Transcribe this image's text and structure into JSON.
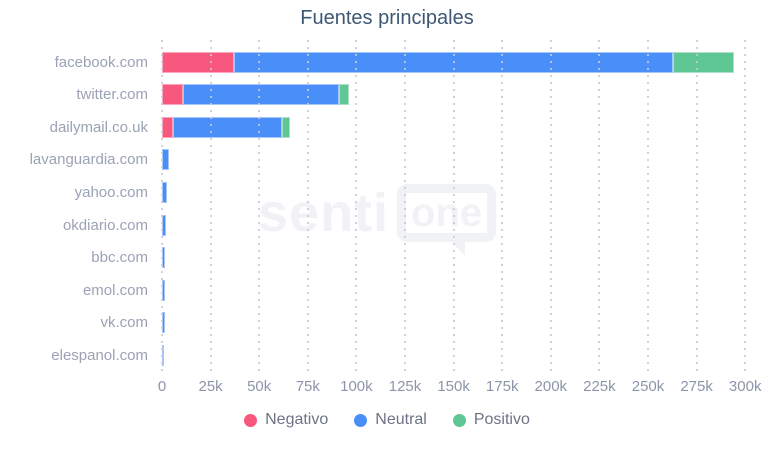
{
  "chart_data": {
    "type": "bar",
    "orientation": "horizontal",
    "stacked": true,
    "title": "Fuentes principales",
    "categories": [
      "facebook.com",
      "twitter.com",
      "dailymail.co.uk",
      "lavanguardia.com",
      "yahoo.com",
      "okdiario.com",
      "bbc.com",
      "emol.com",
      "vk.com",
      "elespanol.com"
    ],
    "series": [
      {
        "name": "Negativo",
        "color": "#f8577e",
        "border_color": "#fba4ba",
        "values": [
          37000,
          11000,
          5500,
          0,
          0,
          0,
          0,
          0,
          0,
          0
        ]
      },
      {
        "name": "Neutral",
        "color": "#4a8ff8",
        "border_color": "#a6c6fb",
        "values": [
          226000,
          80000,
          56000,
          3500,
          2500,
          2000,
          1800,
          1600,
          1400,
          400
        ]
      },
      {
        "name": "Positivo",
        "color": "#5ec794",
        "border_color": "#aee0c8",
        "values": [
          31000,
          5000,
          4500,
          0,
          0,
          0,
          0,
          0,
          0,
          0
        ]
      }
    ],
    "x_tick_labels": [
      "0",
      "25k",
      "50k",
      "75k",
      "100k",
      "125k",
      "150k",
      "175k",
      "200k",
      "225k",
      "250k",
      "275k",
      "300k"
    ],
    "x_tick_values": [
      0,
      25000,
      50000,
      75000,
      100000,
      125000,
      150000,
      175000,
      200000,
      225000,
      250000,
      275000,
      300000
    ],
    "xlim": [
      0,
      315000
    ],
    "grid": "vertical-dotted",
    "legend_position": "bottom"
  },
  "watermark": {
    "text_left": "senti",
    "text_right": "one"
  },
  "colors": {
    "title": "#3e5874",
    "category_labels": "#9ba2b6",
    "tick_labels": "#8d95aa",
    "legend_text": "#6d7385",
    "gridline": "#c6cbd5",
    "watermark": "#f1f2f5",
    "background": "#ffffff"
  }
}
